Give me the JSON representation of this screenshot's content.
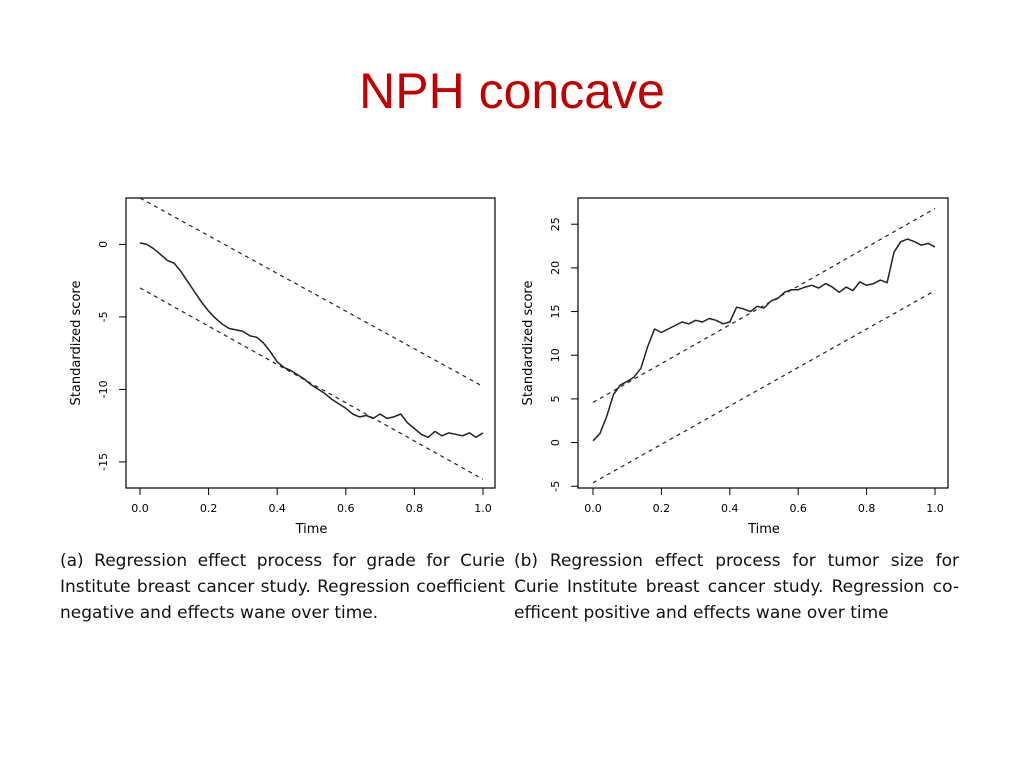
{
  "slide": {
    "title": "NPH concave",
    "captions": [
      "(a) Regression effect process for grade for Curie Institute breast cancer study. Regression coefficient negative and effects wane over time.",
      "(b) Regression effect process for tumor size for Curie Institute breast cancer study. Regression co-efficent positive and effects wane over time"
    ]
  },
  "chart_data": [
    {
      "type": "line",
      "xlabel": "Time",
      "ylabel": "Standardized score",
      "xlim": [
        0.0,
        1.0
      ],
      "ylim": [
        -16.8,
        3.2
      ],
      "xticks": [
        "0.0",
        "0.2",
        "0.4",
        "0.6",
        "0.8",
        "1.0"
      ],
      "yticks": [
        "-15",
        "-10",
        "-5",
        "0"
      ],
      "grid": false,
      "series": [
        {
          "style": "solid",
          "x": [
            0,
            0.02,
            0.04,
            0.06,
            0.08,
            0.1,
            0.12,
            0.14,
            0.16,
            0.18,
            0.2,
            0.22,
            0.24,
            0.26,
            0.28,
            0.3,
            0.32,
            0.34,
            0.36,
            0.38,
            0.4,
            0.42,
            0.44,
            0.46,
            0.48,
            0.5,
            0.52,
            0.54,
            0.56,
            0.58,
            0.6,
            0.62,
            0.64,
            0.66,
            0.68,
            0.7,
            0.72,
            0.74,
            0.76,
            0.78,
            0.8,
            0.82,
            0.84,
            0.86,
            0.88,
            0.9,
            0.92,
            0.94,
            0.96,
            0.98,
            1.0
          ],
          "y": [
            0.1,
            0.0,
            -0.3,
            -0.7,
            -1.1,
            -1.3,
            -1.9,
            -2.6,
            -3.3,
            -4.0,
            -4.6,
            -5.1,
            -5.5,
            -5.8,
            -5.9,
            -6.0,
            -6.3,
            -6.4,
            -6.8,
            -7.4,
            -8.1,
            -8.5,
            -8.7,
            -9.0,
            -9.3,
            -9.7,
            -10.0,
            -10.3,
            -10.7,
            -11.0,
            -11.3,
            -11.7,
            -11.9,
            -11.8,
            -12.0,
            -11.7,
            -12.0,
            -11.9,
            -11.7,
            -12.3,
            -12.7,
            -13.1,
            -13.3,
            -12.9,
            -13.2,
            -13.0,
            -13.1,
            -13.2,
            -13.0,
            -13.3,
            -13.0
          ]
        },
        {
          "style": "dashed",
          "x": [
            0,
            1
          ],
          "y": [
            3.2,
            -9.8
          ]
        },
        {
          "style": "dashed",
          "x": [
            0,
            1
          ],
          "y": [
            -3.0,
            -16.2
          ]
        }
      ]
    },
    {
      "type": "line",
      "xlabel": "Time",
      "ylabel": "Standardized score",
      "xlim": [
        0.0,
        1.0
      ],
      "ylim": [
        -5.2,
        28.0
      ],
      "xticks": [
        "0.0",
        "0.2",
        "0.4",
        "0.6",
        "0.8",
        "1.0"
      ],
      "yticks": [
        "-5",
        "0",
        "5",
        "10",
        "15",
        "20",
        "25"
      ],
      "grid": false,
      "series": [
        {
          "style": "solid",
          "x": [
            0,
            0.02,
            0.04,
            0.06,
            0.08,
            0.1,
            0.12,
            0.14,
            0.16,
            0.18,
            0.2,
            0.22,
            0.24,
            0.26,
            0.28,
            0.3,
            0.32,
            0.34,
            0.36,
            0.38,
            0.4,
            0.42,
            0.44,
            0.46,
            0.48,
            0.5,
            0.52,
            0.54,
            0.56,
            0.58,
            0.6,
            0.62,
            0.64,
            0.66,
            0.68,
            0.7,
            0.72,
            0.74,
            0.76,
            0.78,
            0.8,
            0.82,
            0.84,
            0.86,
            0.88,
            0.9,
            0.92,
            0.94,
            0.96,
            0.98,
            1.0
          ],
          "y": [
            0.2,
            1.0,
            3.0,
            5.5,
            6.6,
            7.0,
            7.5,
            8.5,
            11.0,
            13.0,
            12.6,
            13.0,
            13.4,
            13.8,
            13.6,
            14.0,
            13.8,
            14.2,
            14.0,
            13.6,
            13.8,
            15.5,
            15.3,
            15.0,
            15.6,
            15.4,
            16.2,
            16.5,
            17.2,
            17.5,
            17.5,
            17.8,
            18.0,
            17.7,
            18.2,
            17.8,
            17.2,
            17.8,
            17.4,
            18.4,
            18.0,
            18.2,
            18.6,
            18.3,
            21.8,
            23.0,
            23.3,
            23.0,
            22.6,
            22.8,
            22.4
          ]
        },
        {
          "style": "dashed",
          "x": [
            0,
            1
          ],
          "y": [
            4.6,
            26.8
          ]
        },
        {
          "style": "dashed",
          "x": [
            0,
            1
          ],
          "y": [
            -4.6,
            17.4
          ]
        }
      ]
    }
  ]
}
